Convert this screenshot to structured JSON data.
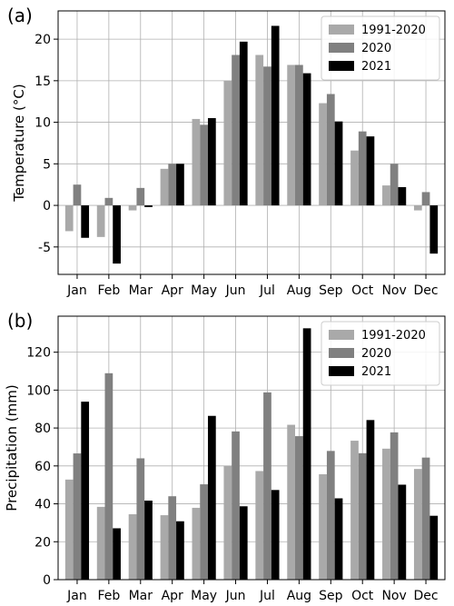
{
  "chart_data": [
    {
      "type": "bar",
      "panel_label": "(a)",
      "title": "",
      "xlabel": "",
      "ylabel": "Temperature (°C)",
      "categories": [
        "Jan",
        "Feb",
        "Mar",
        "Apr",
        "May",
        "Jun",
        "Jul",
        "Aug",
        "Sep",
        "Oct",
        "Nov",
        "Dec"
      ],
      "ylim": [
        -8.3,
        23.4
      ],
      "yticks": [
        -5,
        0,
        5,
        10,
        15,
        20
      ],
      "grid": true,
      "legend_position": "top-right",
      "series": [
        {
          "name": "1991-2020",
          "color": "#a9a9a9",
          "values": [
            -3.1,
            -3.8,
            -0.6,
            4.4,
            10.4,
            15.0,
            18.1,
            16.9,
            12.3,
            6.6,
            2.4,
            -0.6
          ]
        },
        {
          "name": "2020",
          "color": "#808080",
          "values": [
            2.5,
            0.9,
            2.1,
            5.0,
            9.7,
            18.1,
            16.7,
            16.9,
            13.4,
            8.9,
            5.0,
            1.6
          ]
        },
        {
          "name": "2021",
          "color": "#000000",
          "values": [
            -3.9,
            -7.0,
            -0.2,
            5.0,
            10.5,
            19.7,
            21.6,
            15.9,
            10.1,
            8.3,
            2.2,
            -5.8
          ]
        }
      ]
    },
    {
      "type": "bar",
      "panel_label": "(b)",
      "title": "",
      "xlabel": "",
      "ylabel": "Precipitation (mm)",
      "categories": [
        "Jan",
        "Feb",
        "Mar",
        "Apr",
        "May",
        "Jun",
        "Jul",
        "Aug",
        "Sep",
        "Oct",
        "Nov",
        "Dec"
      ],
      "ylim": [
        0,
        139
      ],
      "yticks": [
        0,
        20,
        40,
        60,
        80,
        100,
        120
      ],
      "grid": true,
      "legend_position": "top-right",
      "series": [
        {
          "name": "1991-2020",
          "color": "#a9a9a9",
          "values": [
            52.8,
            38.4,
            34.5,
            34.0,
            37.9,
            60.0,
            57.3,
            81.7,
            55.6,
            73.3,
            69.1,
            58.4
          ]
        },
        {
          "name": "2020",
          "color": "#808080",
          "values": [
            66.6,
            108.9,
            64.0,
            44.0,
            50.3,
            78.2,
            98.8,
            75.7,
            67.9,
            66.7,
            77.7,
            64.4
          ]
        },
        {
          "name": "2021",
          "color": "#000000",
          "values": [
            93.9,
            27.1,
            41.7,
            30.8,
            86.4,
            38.7,
            47.3,
            132.6,
            42.9,
            84.2,
            50.1,
            33.7
          ]
        }
      ]
    }
  ]
}
